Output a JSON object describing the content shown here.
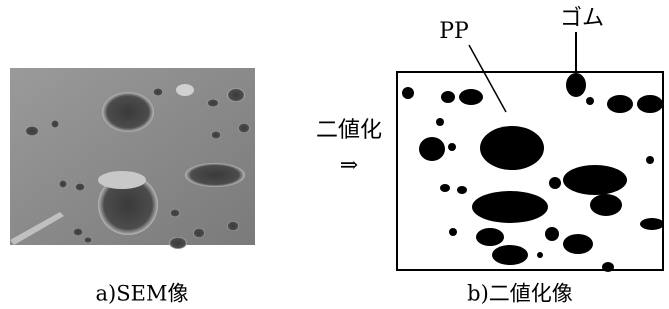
{
  "figure": {
    "left_caption": "a)SEM像",
    "right_caption": "b)二値化像",
    "arrow_label": "二値化",
    "arrow": "⇒",
    "pp_label": "PP",
    "rubber_label": "ゴム"
  }
}
